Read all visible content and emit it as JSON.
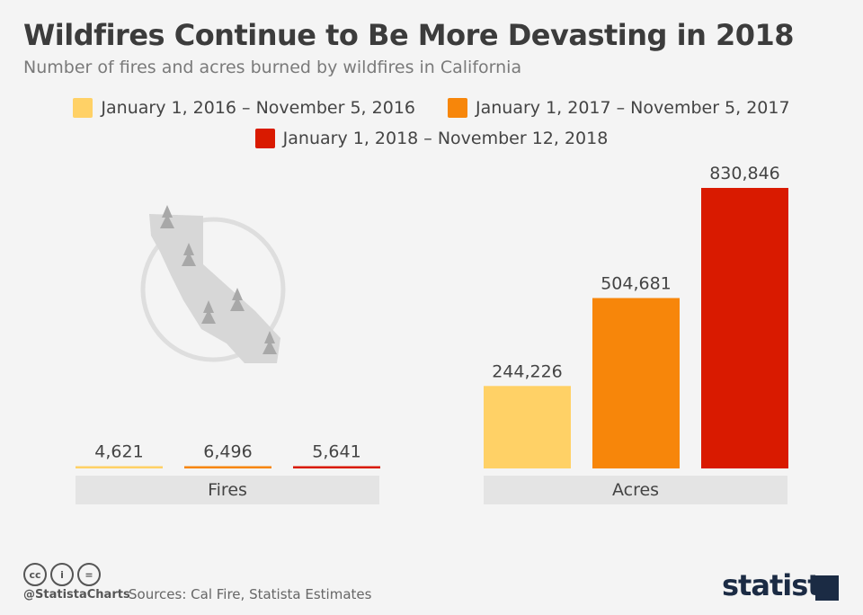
{
  "title": "Wildfires Continue to Be More Devasting in 2018",
  "subtitle": "Number of fires and acres burned by wildfires in California",
  "legend": [
    {
      "label": "January 1, 2016 – November 5, 2016",
      "color": "#ffd166"
    },
    {
      "label": "January 1, 2017 – November 5, 2017",
      "color": "#f7860a"
    },
    {
      "label": "January 1, 2018 – November 12, 2018",
      "color": "#d91a00"
    }
  ],
  "chart_data": [
    {
      "type": "bar",
      "category_label": "Fires",
      "values": [
        4621,
        6496,
        5641
      ],
      "value_labels": [
        "4,621",
        "6,496",
        "5,641"
      ],
      "colors": [
        "#ffd166",
        "#f7860a",
        "#d91a00"
      ],
      "scale_max": 830846
    },
    {
      "type": "bar",
      "category_label": "Acres",
      "values": [
        244226,
        504681,
        830846
      ],
      "value_labels": [
        "244,226",
        "504,681",
        "830,846"
      ],
      "colors": [
        "#ffd166",
        "#f7860a",
        "#d91a00"
      ],
      "scale_max": 830846
    }
  ],
  "icon": "california-wildfire-map-icon",
  "footer": {
    "license_icons": [
      "creative-commons-icon",
      "attribution-icon",
      "no-derivatives-icon"
    ],
    "handle": "@StatistaCharts",
    "sources": "Sources: Cal Fire, Statista Estimates",
    "brand": "statista"
  }
}
